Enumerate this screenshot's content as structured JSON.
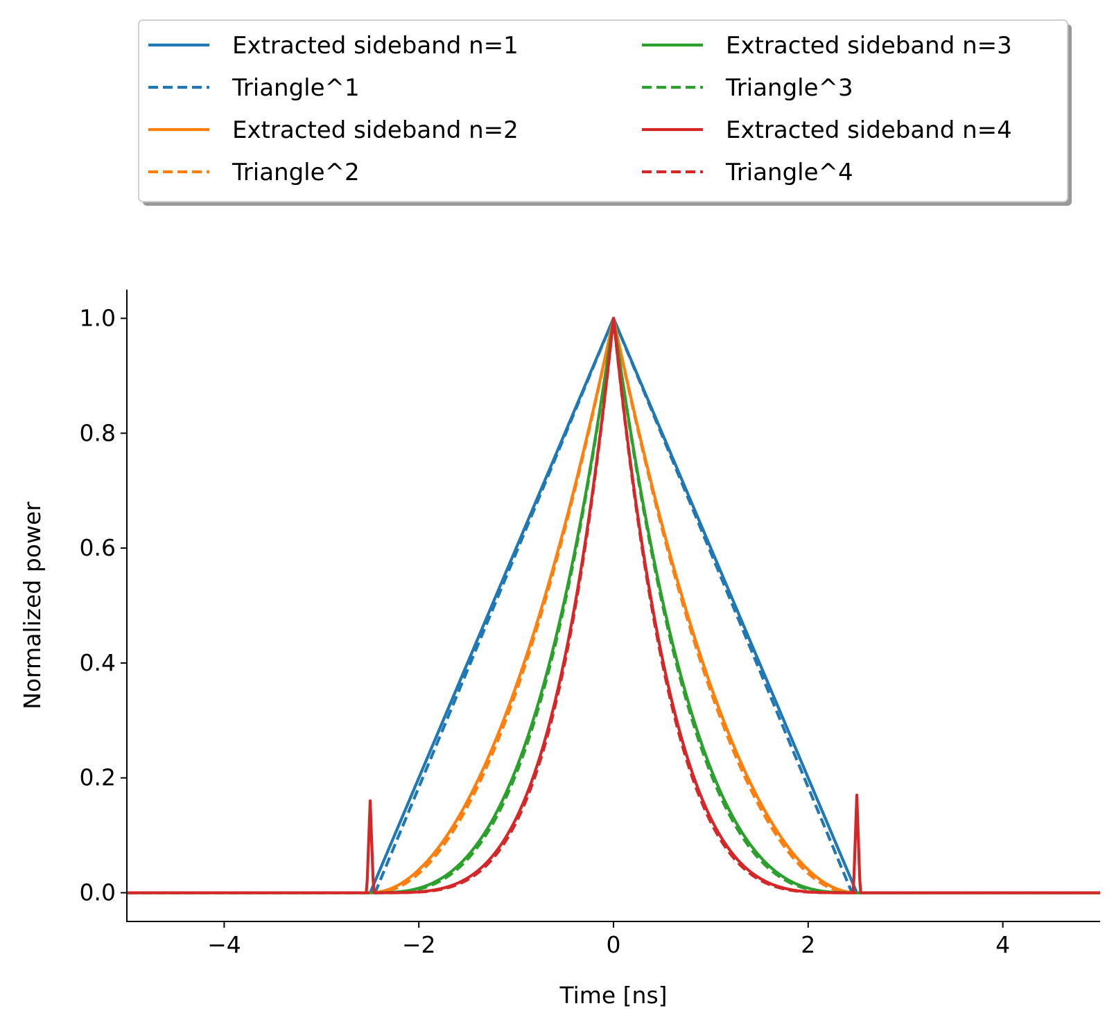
{
  "chart_data": {
    "type": "line",
    "title": "",
    "xlabel": "Time [ns]",
    "ylabel": "Normalized power",
    "xlim": [
      -5,
      5
    ],
    "ylim": [
      -0.05,
      1.05
    ],
    "xticks": [
      -4,
      -2,
      0,
      2,
      4
    ],
    "xtick_labels": [
      "−4",
      "−2",
      "0",
      "2",
      "4"
    ],
    "yticks": [
      0.0,
      0.2,
      0.4,
      0.6,
      0.8,
      1.0
    ],
    "ytick_labels": [
      "0.0",
      "0.2",
      "0.4",
      "0.6",
      "0.8",
      "1.0"
    ],
    "grid": false,
    "legend_placement": "top, above plot, 2 columns",
    "pulse_half_width_ns": 2.5,
    "series": [
      {
        "name": "Extracted sideband n=1",
        "color": "#1f77b4",
        "style": "solid",
        "exponent": 1,
        "x": [
          -5,
          -2.5,
          -2.4,
          -2,
          -1.5,
          -1,
          -0.5,
          0,
          0.5,
          1,
          1.5,
          2,
          2.4,
          2.5,
          5
        ],
        "y": [
          0,
          0,
          0.04,
          0.2,
          0.4,
          0.6,
          0.8,
          1.0,
          0.8,
          0.6,
          0.4,
          0.2,
          0.04,
          0,
          0
        ]
      },
      {
        "name": "Triangle^1",
        "color": "#1f77b4",
        "style": "dashed",
        "exponent": 1,
        "x": [
          -5,
          -2.45,
          -2,
          -1.5,
          -1,
          -0.5,
          0,
          0.5,
          1,
          1.5,
          2,
          2.45,
          5
        ],
        "y": [
          0,
          0,
          0.18,
          0.39,
          0.58,
          0.79,
          1.0,
          0.79,
          0.58,
          0.39,
          0.18,
          0,
          0
        ]
      },
      {
        "name": "Extracted sideband n=2",
        "color": "#ff7f0e",
        "style": "solid",
        "exponent": 2,
        "x": [
          -5,
          -2.5,
          -2,
          -1.5,
          -1,
          -0.5,
          0,
          0.5,
          1,
          1.5,
          2,
          2.5,
          5
        ],
        "y": [
          0,
          0,
          0.04,
          0.16,
          0.36,
          0.64,
          1.0,
          0.64,
          0.36,
          0.16,
          0.04,
          0,
          0
        ]
      },
      {
        "name": "Triangle^2",
        "color": "#ff7f0e",
        "style": "dashed",
        "exponent": 2,
        "x": [
          -5,
          -2.5,
          -2,
          -1.5,
          -1,
          -0.5,
          0,
          0.5,
          1,
          1.5,
          2,
          2.5,
          5
        ],
        "y": [
          0,
          0,
          0.04,
          0.16,
          0.36,
          0.64,
          1.0,
          0.64,
          0.36,
          0.16,
          0.04,
          0,
          0
        ]
      },
      {
        "name": "Extracted sideband n=3",
        "color": "#2ca02c",
        "style": "solid",
        "exponent": 3,
        "x": [
          -5,
          -2.5,
          -2,
          -1.5,
          -1,
          -0.5,
          0,
          0.5,
          1,
          1.5,
          2,
          2.5,
          5
        ],
        "y": [
          0,
          0,
          0.008,
          0.064,
          0.216,
          0.512,
          1.0,
          0.512,
          0.216,
          0.064,
          0.008,
          0,
          0
        ]
      },
      {
        "name": "Triangle^3",
        "color": "#2ca02c",
        "style": "dashed",
        "exponent": 3,
        "x": [
          -5,
          -2.5,
          -2,
          -1.5,
          -1,
          -0.5,
          0,
          0.5,
          1,
          1.5,
          2,
          2.5,
          5
        ],
        "y": [
          0,
          0,
          0.008,
          0.064,
          0.216,
          0.512,
          1.0,
          0.512,
          0.216,
          0.064,
          0.008,
          0,
          0
        ]
      },
      {
        "name": "Extracted sideband n=4",
        "color": "#d62728",
        "style": "solid",
        "exponent": 4,
        "x": [
          -5,
          -2.55,
          -2.5,
          -2.45,
          -2,
          -1.5,
          -1,
          -0.5,
          0,
          0.5,
          1,
          1.5,
          2,
          2.45,
          2.5,
          2.55,
          5
        ],
        "y": [
          0,
          0,
          0.16,
          0,
          0.002,
          0.026,
          0.13,
          0.41,
          1.0,
          0.41,
          0.13,
          0.026,
          0.002,
          0,
          0.17,
          0,
          0
        ]
      },
      {
        "name": "Triangle^4",
        "color": "#d62728",
        "style": "dashed",
        "exponent": 4,
        "x": [
          -5,
          -2.5,
          -2,
          -1.5,
          -1,
          -0.5,
          0,
          0.5,
          1,
          1.5,
          2,
          2.5,
          5
        ],
        "y": [
          0,
          0,
          0.002,
          0.026,
          0.13,
          0.41,
          1.0,
          0.41,
          0.13,
          0.026,
          0.002,
          0,
          0
        ]
      }
    ]
  }
}
